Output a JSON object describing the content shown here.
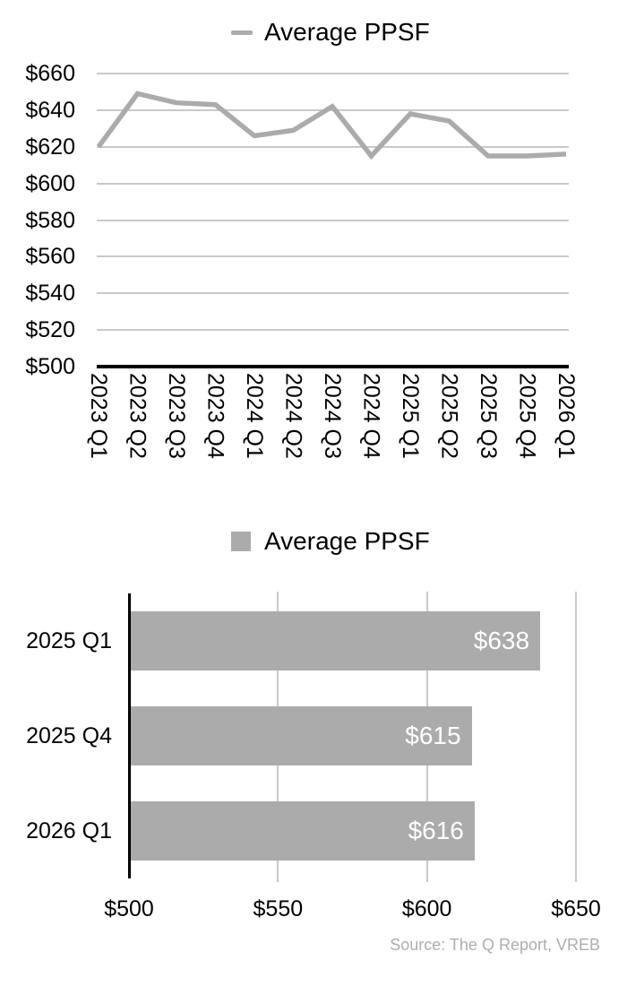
{
  "source_note": "Source: The Q Report, VREB",
  "colors": {
    "series": "#ABABAB",
    "gridline": "#C9C9C9",
    "axis": "#000000",
    "text": "#000000",
    "bar_value_label": "#FFFFFF",
    "source_text": "#AEAEAE"
  },
  "chart_data": [
    {
      "type": "line",
      "legend": "Average PPSF",
      "legend_position": "top-center",
      "x": [
        "2023 Q1",
        "2023 Q2",
        "2023 Q3",
        "2023 Q4",
        "2024 Q1",
        "2024 Q2",
        "2024 Q3",
        "2024 Q4",
        "2025 Q1",
        "2025 Q2",
        "2025 Q3",
        "2025 Q4",
        "2026 Q1"
      ],
      "values": [
        620,
        649,
        644,
        643,
        626,
        629,
        642,
        615,
        638,
        634,
        615,
        615,
        616
      ],
      "ylim": [
        500,
        660
      ],
      "ytick_step": 20,
      "ytick_labels": [
        "$500",
        "$520",
        "$540",
        "$560",
        "$580",
        "$600",
        "$620",
        "$640",
        "$660"
      ],
      "grid": "horizontal",
      "x_label_rotation": 90
    },
    {
      "type": "bar",
      "orientation": "horizontal",
      "legend": "Average PPSF",
      "legend_position": "top-center",
      "categories": [
        "2025 Q1",
        "2025 Q4",
        "2026 Q1"
      ],
      "values": [
        638,
        615,
        616
      ],
      "value_labels": [
        "$638",
        "$615",
        "$616"
      ],
      "xlim": [
        500,
        650
      ],
      "xticks": [
        500,
        550,
        600,
        650
      ],
      "xtick_labels": [
        "$500",
        "$550",
        "$600",
        "$650"
      ],
      "grid": "vertical"
    }
  ]
}
